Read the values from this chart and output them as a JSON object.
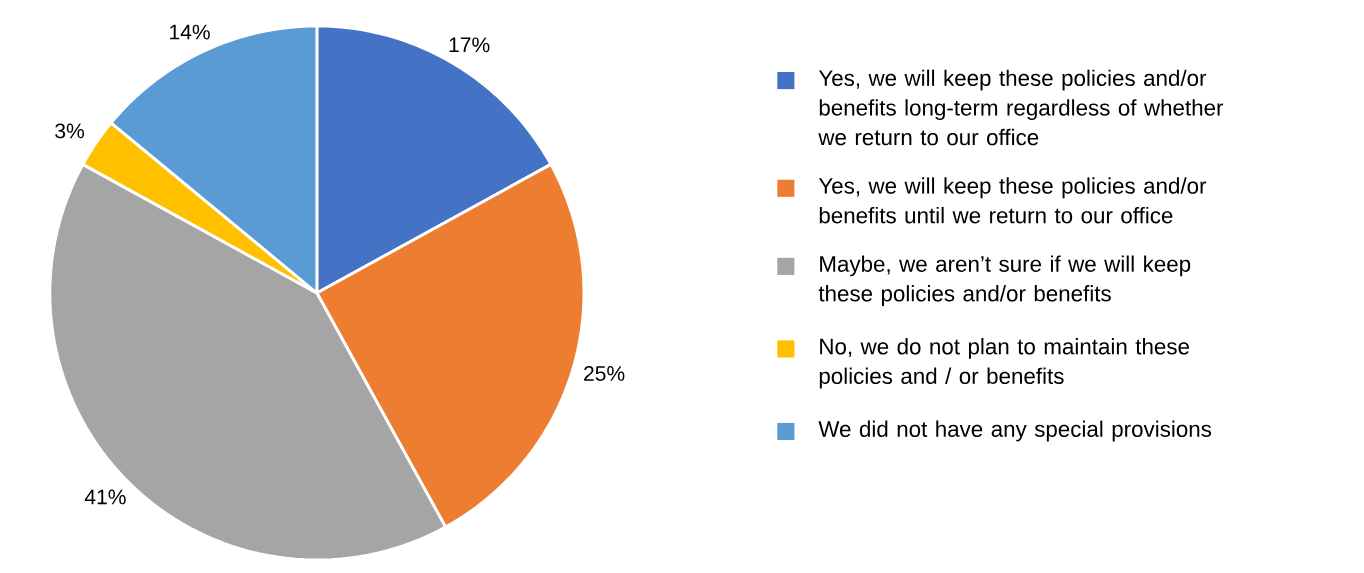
{
  "chart_data": {
    "type": "pie",
    "categories": [
      "Yes, we will keep these policies and/or benefits long-term regardless of whether we return to our office",
      "Yes, we will keep these policies and/or benefits until we return to our office",
      "Maybe, we aren’t sure if we will keep these policies and/or benefits",
      "No, we do not plan to maintain these policies and / or benefits",
      "We did not have any special provisions"
    ],
    "values": [
      17,
      25,
      41,
      3,
      14
    ],
    "value_labels": [
      "17%",
      "25%",
      "41%",
      "3%",
      "14%"
    ],
    "colors": [
      "#4472c4",
      "#ed7d31",
      "#a5a5a5",
      "#ffc000",
      "#5b9bd5"
    ],
    "legend": "right"
  }
}
